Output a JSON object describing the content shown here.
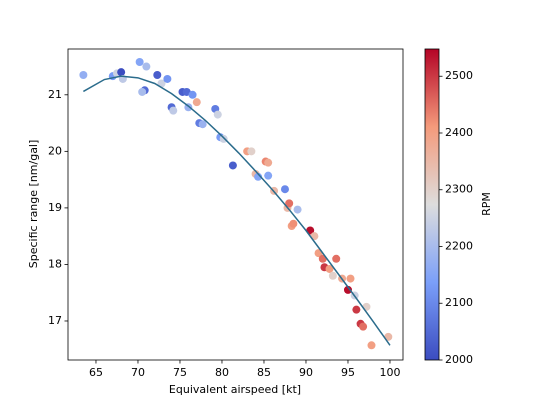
{
  "chart_data": {
    "type": "scatter",
    "xlabel": "Equivalent airspeed [kt]",
    "ylabel": "Specific range [nm/gal]",
    "xlim": [
      61.67,
      101.55
    ],
    "ylim": [
      16.31,
      21.81
    ],
    "xticks": [
      65,
      70,
      75,
      80,
      85,
      90,
      95,
      100
    ],
    "yticks": [
      17,
      18,
      19,
      20,
      21
    ],
    "points": {
      "x": [
        63.5,
        67,
        67.5,
        68,
        68.2,
        70.2,
        71,
        70.8,
        70.5,
        72.3,
        72.8,
        73.5,
        75.3,
        75.8,
        76.5,
        77,
        74,
        74.2,
        76,
        77.3,
        77.7,
        79.2,
        79.5,
        79.8,
        80.2,
        81.3,
        83,
        83.5,
        84,
        84.3,
        85.2,
        85.5,
        85.5,
        86.2,
        87.5,
        87.8,
        88,
        88.3,
        88.5,
        89,
        90.5,
        91,
        91.5,
        92,
        92.2,
        92.8,
        93.2,
        93.6,
        94.3,
        95,
        95.3,
        95.8,
        96,
        96.5,
        96.8,
        97.2,
        97.8,
        99.8
      ],
      "y": [
        21.35,
        21.33,
        21.38,
        21.4,
        21.28,
        21.58,
        21.5,
        21.08,
        21.05,
        21.35,
        21.2,
        21.28,
        21.05,
        21.05,
        21.0,
        20.87,
        20.78,
        20.72,
        20.78,
        20.5,
        20.48,
        20.75,
        20.65,
        20.25,
        20.22,
        19.75,
        20.0,
        20.0,
        19.6,
        19.55,
        19.82,
        19.8,
        19.57,
        19.3,
        19.33,
        19.0,
        19.08,
        18.68,
        18.72,
        18.97,
        18.6,
        18.5,
        18.2,
        18.1,
        17.95,
        17.92,
        17.8,
        18.1,
        17.75,
        17.55,
        17.75,
        17.45,
        17.2,
        16.95,
        16.9,
        17.25,
        16.57,
        16.72
      ],
      "rpm": [
        2170,
        2130,
        2250,
        2000,
        2230,
        2150,
        2200,
        2050,
        2200,
        2030,
        2250,
        2120,
        2030,
        2050,
        2120,
        2380,
        2050,
        2230,
        2180,
        2080,
        2180,
        2080,
        2250,
        2130,
        2250,
        2030,
        2400,
        2300,
        2350,
        2150,
        2430,
        2380,
        2150,
        2350,
        2100,
        2350,
        2450,
        2400,
        2420,
        2200,
        2540,
        2350,
        2400,
        2450,
        2500,
        2400,
        2300,
        2450,
        2380,
        2540,
        2400,
        2250,
        2500,
        2500,
        2450,
        2300,
        2400,
        2350
      ]
    },
    "fit": {
      "color": "#2b6c8c",
      "x": [
        63.5,
        66,
        68,
        70,
        72,
        74,
        76,
        78,
        80,
        82,
        84,
        86,
        88,
        90,
        92,
        94,
        96,
        98,
        100
      ],
      "y": [
        21.06,
        21.27,
        21.33,
        21.3,
        21.2,
        21.02,
        20.8,
        20.55,
        20.27,
        19.97,
        19.65,
        19.32,
        18.97,
        18.6,
        18.2,
        17.8,
        17.4,
        16.99,
        16.57
      ]
    },
    "colorbar": {
      "label": "RPM",
      "lim": [
        2000,
        2548
      ],
      "ticks": [
        2000,
        2100,
        2200,
        2300,
        2400,
        2500
      ],
      "colors": [
        "#3b4cc0",
        "#7b9ff9",
        "#dddddd",
        "#f49a7b",
        "#b40426"
      ]
    }
  }
}
